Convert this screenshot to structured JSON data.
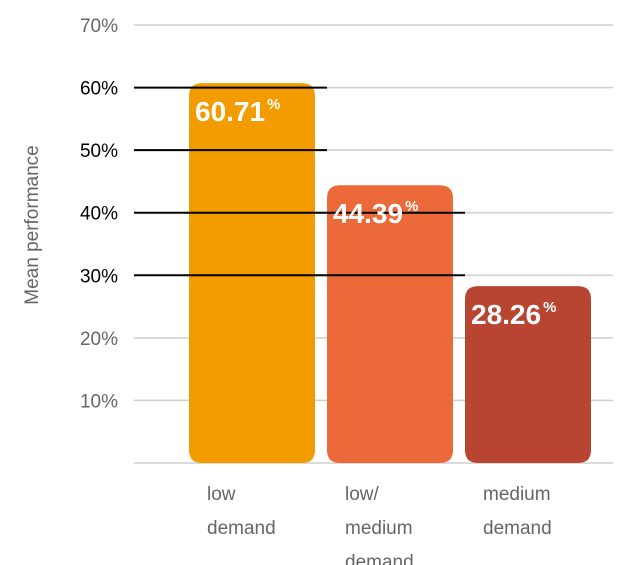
{
  "chart_data": {
    "type": "bar",
    "title": "",
    "xlabel": "",
    "ylabel": "Mean performance",
    "ylim": [
      0,
      70
    ],
    "yticks": [
      "10%",
      "20%",
      "30%",
      "40%",
      "50%",
      "60%",
      "70%"
    ],
    "categories": [
      [
        "low",
        "demand"
      ],
      [
        "low/",
        "medium",
        "demand"
      ],
      [
        "medium",
        "demand"
      ]
    ],
    "values": [
      60.71,
      44.39,
      28.26
    ],
    "data_labels": [
      "60.71",
      "44.39",
      "28.26"
    ],
    "data_label_unit": "%",
    "colors": [
      "#F39C00",
      "#EC6A3A",
      "#B84531"
    ],
    "grid": true,
    "legend": "none"
  }
}
